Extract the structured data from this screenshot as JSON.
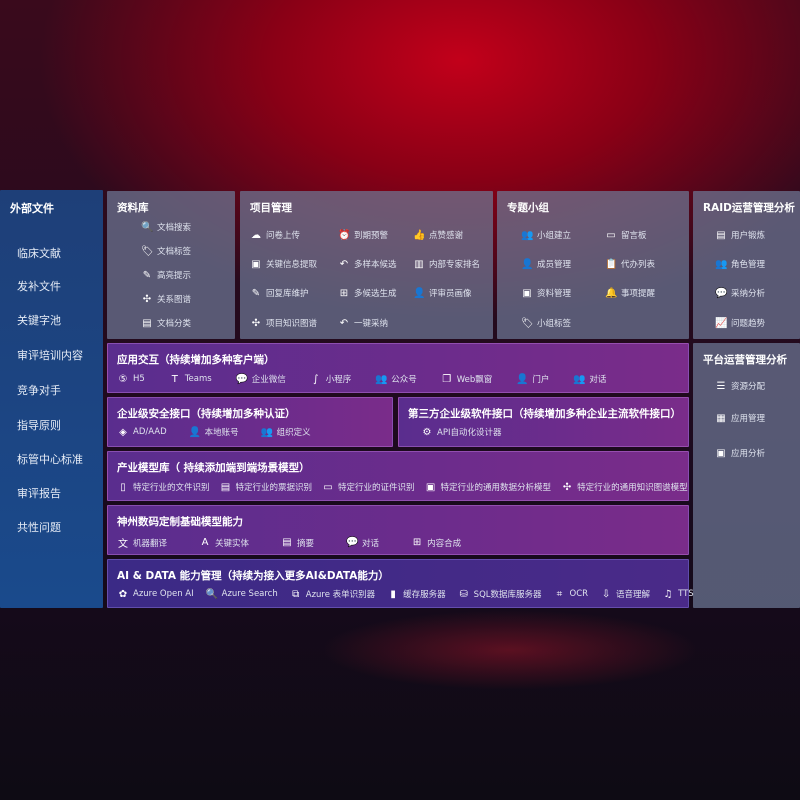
{
  "sidebar": {
    "title": "外部文件",
    "items": [
      "临床文献",
      "发补文件",
      "关键字池",
      "审评培训内容",
      "竞争对手",
      "指导原则",
      "标管中心标准",
      "审评报告",
      "共性问题"
    ]
  },
  "library": {
    "title": "资料库",
    "items": [
      {
        "icon": "document-search-icon",
        "g": "🔍",
        "label": "文档搜索"
      },
      {
        "icon": "tag-icon",
        "g": "🏷",
        "label": "文档标签"
      },
      {
        "icon": "pen-icon",
        "g": "✎",
        "label": "高亮提示"
      },
      {
        "icon": "graph-icon",
        "g": "✣",
        "label": "关系图谱"
      },
      {
        "icon": "document-classify-icon",
        "g": "▤",
        "label": "文档分类"
      }
    ]
  },
  "project": {
    "title": "项目管理",
    "items": [
      {
        "icon": "cloud-upload-icon",
        "g": "☁",
        "label": "问卷上传"
      },
      {
        "icon": "alarm-icon",
        "g": "⏰",
        "label": "到期预警"
      },
      {
        "icon": "thumbs-up-icon",
        "g": "👍",
        "label": "点赞感谢"
      },
      {
        "icon": "window-icon",
        "g": "▣",
        "label": "关键信息提取"
      },
      {
        "icon": "reply-icon",
        "g": "↶",
        "label": "多样本候选"
      },
      {
        "icon": "ranking-icon",
        "g": "▥",
        "label": "内部专家排名"
      },
      {
        "icon": "edit-icon",
        "g": "✎",
        "label": "回复库维护"
      },
      {
        "icon": "puzzle-icon",
        "g": "⊞",
        "label": "多候选生成"
      },
      {
        "icon": "user-icon",
        "g": "👤",
        "label": "评审员画像"
      },
      {
        "icon": "network-icon",
        "g": "✣",
        "label": "项目知识图谱"
      },
      {
        "icon": "reply-icon",
        "g": "↶",
        "label": "一键采纳"
      }
    ]
  },
  "topic": {
    "title": "专题小组",
    "items": [
      {
        "icon": "group-icon",
        "g": "👥",
        "label": "小组建立"
      },
      {
        "icon": "bbs-icon",
        "g": "▭",
        "label": "留言板"
      },
      {
        "icon": "member-icon",
        "g": "👤",
        "label": "成员管理"
      },
      {
        "icon": "clipboard-icon",
        "g": "📋",
        "label": "代办列表"
      },
      {
        "icon": "folder-icon",
        "g": "▣",
        "label": "资料管理"
      },
      {
        "icon": "bell-icon",
        "g": "🔔",
        "label": "事项提醒"
      },
      {
        "icon": "tag-icon",
        "g": "🏷",
        "label": "小组标签"
      }
    ]
  },
  "raid": {
    "title": "RAID运营管理分析",
    "items": [
      {
        "icon": "id-card-icon",
        "g": "▤",
        "label": "用户锻炼"
      },
      {
        "icon": "users-icon",
        "g": "👥",
        "label": "角色管理"
      },
      {
        "icon": "qa-icon",
        "g": "💬",
        "label": "采纳分析"
      },
      {
        "icon": "trend-icon",
        "g": "📈",
        "label": "问题趋势"
      }
    ]
  },
  "platform": {
    "title": "平台运营管理分析",
    "items": [
      {
        "icon": "list-icon",
        "g": "☰",
        "label": "资源分配"
      },
      {
        "icon": "apps-icon",
        "g": "▦",
        "label": "应用管理"
      },
      {
        "icon": "analytics-icon",
        "g": "▣",
        "label": "应用分析"
      }
    ]
  },
  "interaction": {
    "title": "应用交互（持续增加多种客户端）",
    "items": [
      {
        "icon": "html5-icon",
        "g": "⑤",
        "label": "H5"
      },
      {
        "icon": "teams-icon",
        "g": "T",
        "label": "Teams"
      },
      {
        "icon": "wechat-work-icon",
        "g": "💬",
        "label": "企业微信"
      },
      {
        "icon": "mini-program-icon",
        "g": "∫",
        "label": "小程序"
      },
      {
        "icon": "official-account-icon",
        "g": "👥",
        "label": "公众号"
      },
      {
        "icon": "web-window-icon",
        "g": "❐",
        "label": "Web飘窗"
      },
      {
        "icon": "portal-icon",
        "g": "👤",
        "label": "门户"
      },
      {
        "icon": "chat-icon",
        "g": "👥",
        "label": "对话"
      }
    ]
  },
  "security": {
    "title": "企业级安全接口（持续增加多种认证）",
    "items": [
      {
        "icon": "azure-ad-icon",
        "g": "◈",
        "label": "AD/AAD"
      },
      {
        "icon": "local-account-icon",
        "g": "👤",
        "label": "本地账号"
      },
      {
        "icon": "organization-icon",
        "g": "👥",
        "label": "组织定义"
      }
    ]
  },
  "thirdparty": {
    "title": "第三方企业级软件接口（持续增加多种企业主流软件接口）",
    "items": [
      {
        "icon": "api-gear-icon",
        "g": "⚙",
        "label": "API自动化设计器"
      }
    ]
  },
  "industry": {
    "title": "产业模型库（ 持续添加端到端场景模型）",
    "items": [
      {
        "icon": "file-recognition-icon",
        "g": "▯",
        "label": "特定行业的文件识别"
      },
      {
        "icon": "receipt-icon",
        "g": "▤",
        "label": "特定行业的票据识别"
      },
      {
        "icon": "id-card-icon",
        "g": "▭",
        "label": "特定行业的证件识别"
      },
      {
        "icon": "data-analysis-icon",
        "g": "▣",
        "label": "特定行业的通用数据分析模型"
      },
      {
        "icon": "knowledge-graph-icon",
        "g": "✣",
        "label": "特定行业的通用知识图谱模型"
      }
    ]
  },
  "foundation": {
    "title": "神州数码定制基础模型能力",
    "items": [
      {
        "icon": "translate-icon",
        "g": "文",
        "label": "机器翻译"
      },
      {
        "icon": "entity-icon",
        "g": "A",
        "label": "关键实体"
      },
      {
        "icon": "summary-icon",
        "g": "▤",
        "label": "摘要"
      },
      {
        "icon": "chat-bubble-icon",
        "g": "💬",
        "label": "对话"
      },
      {
        "icon": "content-synthesis-icon",
        "g": "⊞",
        "label": "内容合成"
      }
    ]
  },
  "aidata": {
    "title": "AI & DATA 能力管理（持续为接入更多AI&DATA能力）",
    "items": [
      {
        "icon": "openai-icon",
        "g": "✿",
        "label": "Azure Open AI"
      },
      {
        "icon": "search-icon",
        "g": "🔍",
        "label": "Azure Search"
      },
      {
        "icon": "form-recognizer-icon",
        "g": "⧉",
        "label": "Azure 表单识别器"
      },
      {
        "icon": "cache-server-icon",
        "g": "▮",
        "label": "缓存服务器"
      },
      {
        "icon": "sql-database-icon",
        "g": "⛁",
        "label": "SQL数据库服务器"
      },
      {
        "icon": "ocr-icon",
        "g": "⌗",
        "label": "OCR"
      },
      {
        "icon": "speech-icon",
        "g": "⇩",
        "label": "语音理解"
      },
      {
        "icon": "tts-icon",
        "g": "♫",
        "label": "TTS"
      }
    ]
  }
}
